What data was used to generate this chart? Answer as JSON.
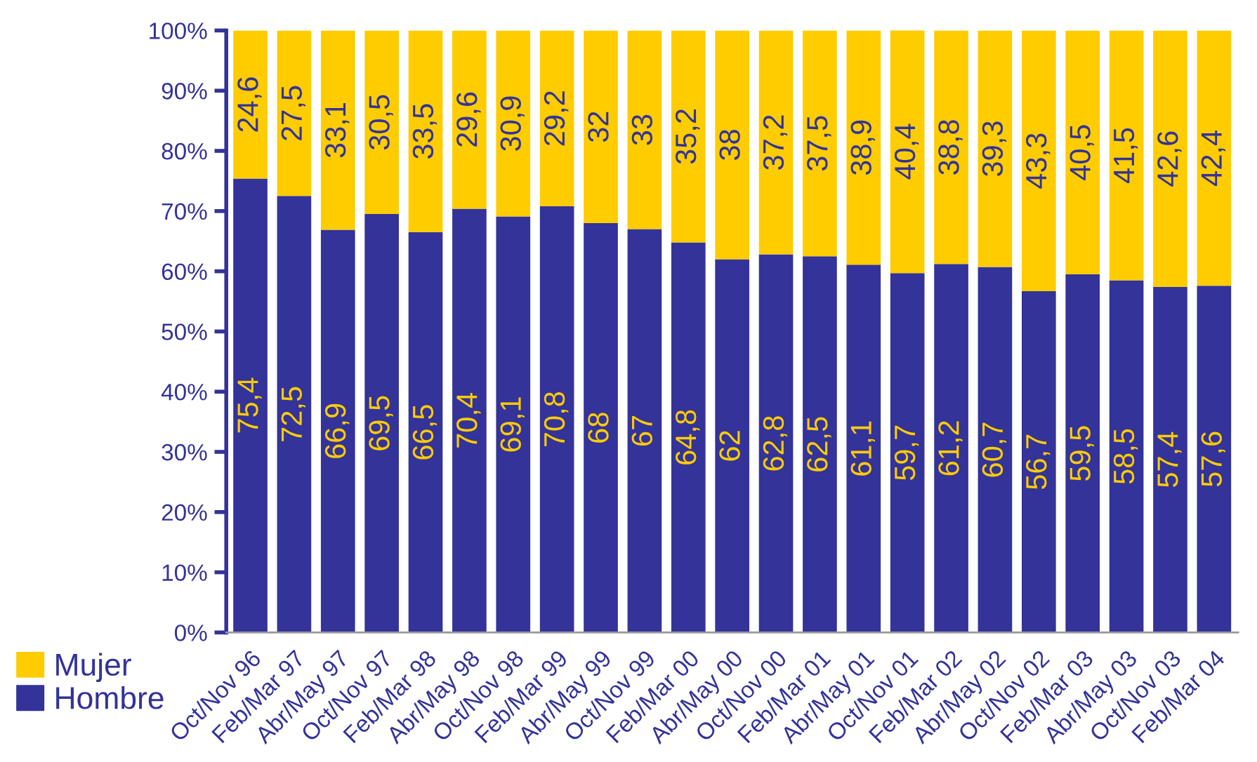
{
  "chart_data": {
    "type": "bar",
    "stacked": true,
    "grid": false,
    "legend": "bottom left",
    "categories": [
      "Oct/Nov 96",
      "Feb/Mar 97",
      "Abr/May 97",
      "Oct/Nov 97",
      "Feb/Mar 98",
      "Abr/May 98",
      "Oct/Nov 98",
      "Feb/Mar 99",
      "Abr/May 99",
      "Oct/Nov 99",
      "Feb/Mar 00",
      "Abr/May 00",
      "Oct/Nov 00",
      "Feb/Mar 01",
      "Abr/May 01",
      "Oct/Nov 01",
      "Feb/Mar 02",
      "Abr/May 02",
      "Oct/Nov 02",
      "Feb/Mar 03",
      "Abr/May 03",
      "Oct/Nov 03",
      "Feb/Mar 04"
    ],
    "series": [
      {
        "name": "Hombre",
        "color": "#333399",
        "values": [
          75.4,
          72.5,
          66.9,
          69.5,
          66.5,
          70.4,
          69.1,
          70.8,
          68,
          67,
          64.8,
          62,
          62.8,
          62.5,
          61.1,
          59.7,
          61.2,
          60.7,
          56.7,
          59.5,
          58.5,
          57.4,
          57.6
        ],
        "value_labels": [
          "75,4",
          "72,5",
          "66,9",
          "69,5",
          "66,5",
          "70,4",
          "69,1",
          "70,8",
          "68",
          "67",
          "64,8",
          "62",
          "62,8",
          "62,5",
          "61,1",
          "59,7",
          "61,2",
          "60,7",
          "56,7",
          "59,5",
          "58,5",
          "57,4",
          "57,6"
        ]
      },
      {
        "name": "Mujer",
        "color": "#ffcc00",
        "values": [
          24.6,
          27.5,
          33.1,
          30.5,
          33.5,
          29.6,
          30.9,
          29.2,
          32,
          33,
          35.2,
          38,
          37.2,
          37.5,
          38.9,
          40.4,
          38.8,
          39.3,
          43.3,
          40.5,
          41.5,
          42.6,
          42.4
        ],
        "value_labels": [
          "24,6",
          "27,5",
          "33,1",
          "30,5",
          "33,5",
          "29,6",
          "30,9",
          "29,2",
          "32",
          "33",
          "35,2",
          "38",
          "37,2",
          "37,5",
          "38,9",
          "40,4",
          "38,8",
          "39,3",
          "43,3",
          "40,5",
          "41,5",
          "42,6",
          "42,4"
        ]
      }
    ],
    "ylim": [
      0,
      100
    ],
    "yticks": [
      {
        "value": 0,
        "label": "0%"
      },
      {
        "value": 10,
        "label": "10%"
      },
      {
        "value": 20,
        "label": "20%"
      },
      {
        "value": 30,
        "label": "30%"
      },
      {
        "value": 40,
        "label": "40%"
      },
      {
        "value": 50,
        "label": "50%"
      },
      {
        "value": 60,
        "label": "60%"
      },
      {
        "value": 70,
        "label": "70%"
      },
      {
        "value": 80,
        "label": "80%"
      },
      {
        "value": 90,
        "label": "90%"
      },
      {
        "value": 100,
        "label": "100%"
      }
    ]
  }
}
